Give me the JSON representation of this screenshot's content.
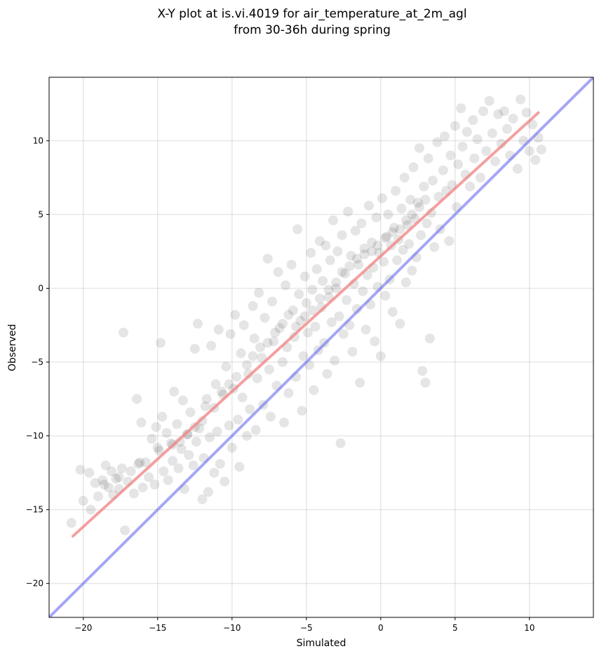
{
  "chart_data": {
    "type": "scatter",
    "title": "X-Y plot at is.vi.4019 for air_temperature_at_2m_agl",
    "subtitle": "from 30-36h during spring",
    "xlabel": "Simulated",
    "ylabel": "Observed",
    "xlim": [
      -22.3,
      14.3
    ],
    "ylim": [
      -22.3,
      14.3
    ],
    "x_ticks": [
      -20,
      -15,
      -10,
      -5,
      0,
      5,
      10
    ],
    "y_ticks": [
      -20,
      -15,
      -10,
      -5,
      0,
      5,
      10
    ],
    "x_tick_labels": [
      "−20",
      "−15",
      "−10",
      "−5",
      "0",
      "5",
      "10"
    ],
    "y_tick_labels": [
      "−20",
      "−15",
      "−10",
      "−5",
      "0",
      "5",
      "10"
    ],
    "grid": true,
    "colors": {
      "points": "#000000",
      "fit_line": "#f08080",
      "identity_line": "#6a6af0"
    },
    "fit_line": {
      "x": [
        -20.7,
        10.6
      ],
      "y": [
        -16.8,
        11.9
      ]
    },
    "identity_line": {
      "x": [
        -22.3,
        14.3
      ],
      "y": [
        -22.3,
        14.3
      ]
    },
    "series": [
      {
        "values": [
          [
            -20.8,
            -15.9
          ],
          [
            -20.2,
            -12.3
          ],
          [
            -20.0,
            -14.4
          ],
          [
            -19.6,
            -12.5
          ],
          [
            -19.5,
            -15.0
          ],
          [
            -19.2,
            -13.2
          ],
          [
            -19.0,
            -14.1
          ],
          [
            -18.7,
            -13.0
          ],
          [
            -18.5,
            -12.0
          ],
          [
            -18.3,
            -13.5
          ],
          [
            -18.1,
            -12.4
          ],
          [
            -18.0,
            -14.0
          ],
          [
            -17.8,
            -12.9
          ],
          [
            -17.6,
            -13.6
          ],
          [
            -17.4,
            -12.2
          ],
          [
            -17.3,
            -3.0
          ],
          [
            -17.2,
            -16.4
          ],
          [
            -17.0,
            -13.1
          ],
          [
            -16.8,
            -12.4
          ],
          [
            -16.6,
            -13.9
          ],
          [
            -16.4,
            -7.5
          ],
          [
            -16.3,
            -11.9
          ],
          [
            -16.1,
            -9.1
          ],
          [
            -16.0,
            -13.5
          ],
          [
            -15.8,
            -11.8
          ],
          [
            -15.6,
            -12.8
          ],
          [
            -15.4,
            -10.2
          ],
          [
            -15.2,
            -13.3
          ],
          [
            -15.1,
            -9.4
          ],
          [
            -14.9,
            -11.0
          ],
          [
            -14.8,
            -3.7
          ],
          [
            -14.7,
            -8.7
          ],
          [
            -14.6,
            -12.4
          ],
          [
            -14.4,
            -9.8
          ],
          [
            -14.3,
            -13.0
          ],
          [
            -14.1,
            -10.5
          ],
          [
            -14.0,
            -11.7
          ],
          [
            -13.9,
            -7.0
          ],
          [
            -13.7,
            -9.2
          ],
          [
            -13.6,
            -12.2
          ],
          [
            -13.4,
            -10.9
          ],
          [
            -13.3,
            -7.6
          ],
          [
            -13.2,
            -13.6
          ],
          [
            -13.0,
            -9.9
          ],
          [
            -12.9,
            -11.3
          ],
          [
            -12.8,
            -8.4
          ],
          [
            -12.6,
            -12.0
          ],
          [
            -12.5,
            -4.1
          ],
          [
            -12.4,
            -10.4
          ],
          [
            -12.3,
            -2.4
          ],
          [
            -12.2,
            -9.5
          ],
          [
            -12.0,
            -14.3
          ],
          [
            -11.9,
            -11.5
          ],
          [
            -11.8,
            -8.0
          ],
          [
            -11.6,
            -13.8
          ],
          [
            -11.5,
            -10.1
          ],
          [
            -11.4,
            -3.9
          ],
          [
            -11.2,
            -12.5
          ],
          [
            -11.1,
            -6.5
          ],
          [
            -11.0,
            -9.7
          ],
          [
            -10.9,
            -2.8
          ],
          [
            -10.8,
            -11.9
          ],
          [
            -10.6,
            -7.2
          ],
          [
            -10.5,
            -13.1
          ],
          [
            -10.4,
            -5.3
          ],
          [
            -10.2,
            -9.3
          ],
          [
            -10.1,
            -3.1
          ],
          [
            -10.0,
            -10.8
          ],
          [
            -9.9,
            -6.8
          ],
          [
            -9.8,
            -1.8
          ],
          [
            -9.6,
            -8.9
          ],
          [
            -9.5,
            -12.1
          ],
          [
            -9.4,
            -4.4
          ],
          [
            -9.3,
            -7.4
          ],
          [
            -9.2,
            -2.5
          ],
          [
            -9.0,
            -10.0
          ],
          [
            -8.9,
            -5.8
          ],
          [
            -8.8,
            -8.2
          ],
          [
            -8.6,
            -1.2
          ],
          [
            -8.5,
            -3.4
          ],
          [
            -8.4,
            -9.6
          ],
          [
            -8.3,
            -6.1
          ],
          [
            -8.2,
            -0.3
          ],
          [
            -8.0,
            -4.7
          ],
          [
            -7.9,
            -7.9
          ],
          [
            -7.8,
            -2.0
          ],
          [
            -7.6,
            2.0
          ],
          [
            -7.5,
            -5.5
          ],
          [
            -7.4,
            -8.7
          ],
          [
            -7.3,
            -0.9
          ],
          [
            -7.2,
            -3.6
          ],
          [
            -7.0,
            -6.6
          ],
          [
            -6.9,
            1.1
          ],
          [
            -6.8,
            -2.7
          ],
          [
            -6.6,
            -5.0
          ],
          [
            -6.5,
            -9.1
          ],
          [
            -6.4,
            0.2
          ],
          [
            -6.3,
            -4.0
          ],
          [
            -6.2,
            -7.1
          ],
          [
            -6.0,
            1.6
          ],
          [
            -5.9,
            -1.5
          ],
          [
            -5.8,
            -3.3
          ],
          [
            -5.7,
            -6.0
          ],
          [
            -5.6,
            4.0
          ],
          [
            -5.5,
            -0.4
          ],
          [
            -5.4,
            -2.2
          ],
          [
            -5.3,
            -8.3
          ],
          [
            -5.2,
            -4.6
          ],
          [
            -5.1,
            0.8
          ],
          [
            -5.0,
            -1.0
          ],
          [
            -4.9,
            -3.0
          ],
          [
            -4.8,
            -5.2
          ],
          [
            -4.7,
            2.4
          ],
          [
            -4.6,
            -0.1
          ],
          [
            -4.5,
            -6.9
          ],
          [
            -4.4,
            -2.6
          ],
          [
            -4.3,
            1.3
          ],
          [
            -4.2,
            -4.2
          ],
          [
            -4.1,
            3.2
          ],
          [
            -4.0,
            -1.3
          ],
          [
            -3.9,
            0.5
          ],
          [
            -3.8,
            -3.7
          ],
          [
            -3.7,
            2.9
          ],
          [
            -3.6,
            -5.8
          ],
          [
            -3.5,
            -0.6
          ],
          [
            -3.4,
            1.9
          ],
          [
            -3.3,
            -2.3
          ],
          [
            -3.2,
            4.6
          ],
          [
            -3.1,
            -4.9
          ],
          [
            -3.0,
            0.0
          ],
          [
            -2.9,
            2.5
          ],
          [
            -2.8,
            -1.9
          ],
          [
            -2.7,
            -10.5
          ],
          [
            -2.6,
            3.6
          ],
          [
            -2.5,
            -3.1
          ],
          [
            -2.4,
            1.0
          ],
          [
            -2.3,
            -0.8
          ],
          [
            -2.2,
            5.2
          ],
          [
            -2.1,
            -2.5
          ],
          [
            -2.0,
            2.2
          ],
          [
            -1.9,
            -4.3
          ],
          [
            -1.8,
            0.3
          ],
          [
            -1.7,
            3.9
          ],
          [
            -1.6,
            -1.4
          ],
          [
            -1.5,
            1.6
          ],
          [
            -1.4,
            -6.4
          ],
          [
            -1.3,
            4.4
          ],
          [
            -1.2,
            -0.2
          ],
          [
            -1.1,
            2.7
          ],
          [
            -1.0,
            -2.8
          ],
          [
            -0.9,
            0.9
          ],
          [
            -0.8,
            5.6
          ],
          [
            -0.7,
            -1.1
          ],
          [
            -0.6,
            3.1
          ],
          [
            -0.5,
            1.4
          ],
          [
            -0.4,
            -3.6
          ],
          [
            -0.3,
            4.8
          ],
          [
            -0.2,
            0.1
          ],
          [
            -0.1,
            2.4
          ],
          [
            0.0,
            -4.6
          ],
          [
            0.1,
            6.1
          ],
          [
            0.2,
            1.8
          ],
          [
            0.3,
            -0.5
          ],
          [
            0.4,
            3.5
          ],
          [
            0.5,
            5.0
          ],
          [
            0.6,
            0.6
          ],
          [
            0.7,
            2.9
          ],
          [
            0.8,
            -1.6
          ],
          [
            0.9,
            4.1
          ],
          [
            1.0,
            6.6
          ],
          [
            1.1,
            1.9
          ],
          [
            1.2,
            3.3
          ],
          [
            1.3,
            -2.4
          ],
          [
            1.4,
            5.4
          ],
          [
            1.5,
            2.6
          ],
          [
            1.6,
            7.5
          ],
          [
            1.7,
            0.4
          ],
          [
            1.8,
            4.3
          ],
          [
            1.9,
            3.0
          ],
          [
            2.0,
            6.0
          ],
          [
            2.1,
            1.2
          ],
          [
            2.2,
            8.2
          ],
          [
            2.3,
            4.7
          ],
          [
            2.4,
            2.1
          ],
          [
            2.5,
            5.8
          ],
          [
            2.6,
            9.5
          ],
          [
            2.7,
            3.6
          ],
          [
            2.8,
            -5.6
          ],
          [
            2.9,
            6.9
          ],
          [
            3.0,
            -6.4
          ],
          [
            3.1,
            4.4
          ],
          [
            3.2,
            8.8
          ],
          [
            3.3,
            -3.4
          ],
          [
            3.4,
            5.1
          ],
          [
            3.5,
            7.3
          ],
          [
            3.6,
            2.8
          ],
          [
            3.8,
            9.9
          ],
          [
            3.9,
            6.2
          ],
          [
            4.0,
            4.0
          ],
          [
            4.2,
            8.0
          ],
          [
            4.3,
            10.3
          ],
          [
            4.4,
            6.6
          ],
          [
            4.6,
            3.2
          ],
          [
            4.7,
            9.0
          ],
          [
            4.8,
            7.0
          ],
          [
            5.0,
            11.0
          ],
          [
            5.1,
            5.5
          ],
          [
            5.2,
            8.4
          ],
          [
            5.4,
            12.2
          ],
          [
            5.5,
            9.6
          ],
          [
            5.7,
            7.7
          ],
          [
            5.8,
            10.6
          ],
          [
            6.0,
            6.9
          ],
          [
            6.2,
            11.4
          ],
          [
            6.3,
            8.8
          ],
          [
            6.5,
            10.1
          ],
          [
            6.7,
            7.5
          ],
          [
            6.9,
            12.0
          ],
          [
            7.1,
            9.3
          ],
          [
            7.3,
            12.7
          ],
          [
            7.5,
            10.5
          ],
          [
            7.7,
            8.6
          ],
          [
            7.9,
            11.8
          ],
          [
            8.1,
            9.8
          ],
          [
            8.3,
            12.0
          ],
          [
            8.5,
            10.8
          ],
          [
            8.7,
            9.0
          ],
          [
            8.9,
            11.5
          ],
          [
            9.2,
            8.1
          ],
          [
            9.4,
            12.8
          ],
          [
            9.6,
            10.0
          ],
          [
            9.8,
            11.9
          ],
          [
            10.0,
            9.3
          ],
          [
            10.2,
            11.1
          ],
          [
            10.4,
            8.7
          ],
          [
            10.6,
            10.2
          ],
          [
            10.8,
            9.4
          ],
          [
            -6.2,
            -1.8
          ],
          [
            -5.7,
            -2.6
          ],
          [
            -5.1,
            -1.9
          ],
          [
            -4.6,
            -1.5
          ],
          [
            -4.1,
            -0.7
          ],
          [
            -3.5,
            -0.1
          ],
          [
            -3.0,
            0.4
          ],
          [
            -2.6,
            1.1
          ],
          [
            -2.1,
            1.5
          ],
          [
            -1.6,
            2.0
          ],
          [
            -1.1,
            2.3
          ],
          [
            -0.6,
            2.5
          ],
          [
            -0.2,
            2.9
          ],
          [
            0.3,
            3.4
          ],
          [
            0.8,
            3.8
          ],
          [
            1.3,
            4.0
          ],
          [
            1.7,
            4.6
          ],
          [
            2.1,
            5.0
          ],
          [
            2.6,
            5.5
          ],
          [
            3.0,
            6.0
          ],
          [
            -9.0,
            -5.2
          ],
          [
            -8.6,
            -4.6
          ],
          [
            -8.1,
            -4.0
          ],
          [
            -7.6,
            -3.7
          ],
          [
            -7.1,
            -3.0
          ],
          [
            -6.6,
            -2.4
          ],
          [
            -11.7,
            -7.5
          ],
          [
            -11.2,
            -8.1
          ],
          [
            -10.7,
            -7.0
          ],
          [
            -10.2,
            -6.5
          ],
          [
            -9.7,
            -6.0
          ],
          [
            -13.5,
            -10.4
          ],
          [
            -13.0,
            -9.9
          ],
          [
            -12.5,
            -9.4
          ],
          [
            -12.0,
            -9.0
          ],
          [
            -14.0,
            -10.6
          ],
          [
            -15.0,
            -10.8
          ],
          [
            -16.2,
            -11.8
          ],
          [
            -17.6,
            -12.8
          ],
          [
            -18.6,
            -13.3
          ]
        ]
      }
    ]
  }
}
